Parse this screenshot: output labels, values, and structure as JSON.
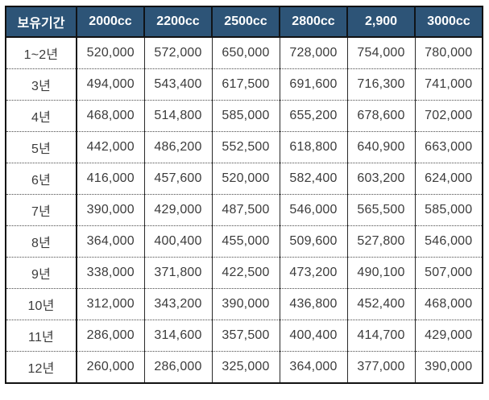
{
  "table": {
    "col_headers": [
      "보유기간",
      "2000cc",
      "2200cc",
      "2500cc",
      "2800cc",
      "2,900",
      "3000cc"
    ],
    "rows": [
      [
        "1~2년",
        "520,000",
        "572,000",
        "650,000",
        "728,000",
        "754,000",
        "780,000"
      ],
      [
        "3년",
        "494,000",
        "543,400",
        "617,500",
        "691,600",
        "716,300",
        "741,000"
      ],
      [
        "4년",
        "468,000",
        "514,800",
        "585,000",
        "655,200",
        "678,600",
        "702,000"
      ],
      [
        "5년",
        "442,000",
        "486,200",
        "552,500",
        "618,800",
        "640,900",
        "663,000"
      ],
      [
        "6년",
        "416,000",
        "457,600",
        "520,000",
        "582,400",
        "603,200",
        "624,000"
      ],
      [
        "7년",
        "390,000",
        "429,000",
        "487,500",
        "546,000",
        "565,500",
        "585,000"
      ],
      [
        "8년",
        "364,000",
        "400,400",
        "455,000",
        "509,600",
        "527,800",
        "546,000"
      ],
      [
        "9년",
        "338,000",
        "371,800",
        "422,500",
        "473,200",
        "490,100",
        "507,000"
      ],
      [
        "10년",
        "312,000",
        "343,200",
        "390,000",
        "436,800",
        "452,400",
        "468,000"
      ],
      [
        "11년",
        "286,000",
        "314,600",
        "357,500",
        "400,400",
        "414,700",
        "429,000"
      ],
      [
        "12년",
        "260,000",
        "286,000",
        "325,000",
        "364,000",
        "377,000",
        "390,000"
      ]
    ]
  },
  "colors": {
    "header_bg": "#2d5477",
    "header_text": "#ffffff",
    "outer_border": "#111111",
    "body_text": "#3c3c3c"
  }
}
